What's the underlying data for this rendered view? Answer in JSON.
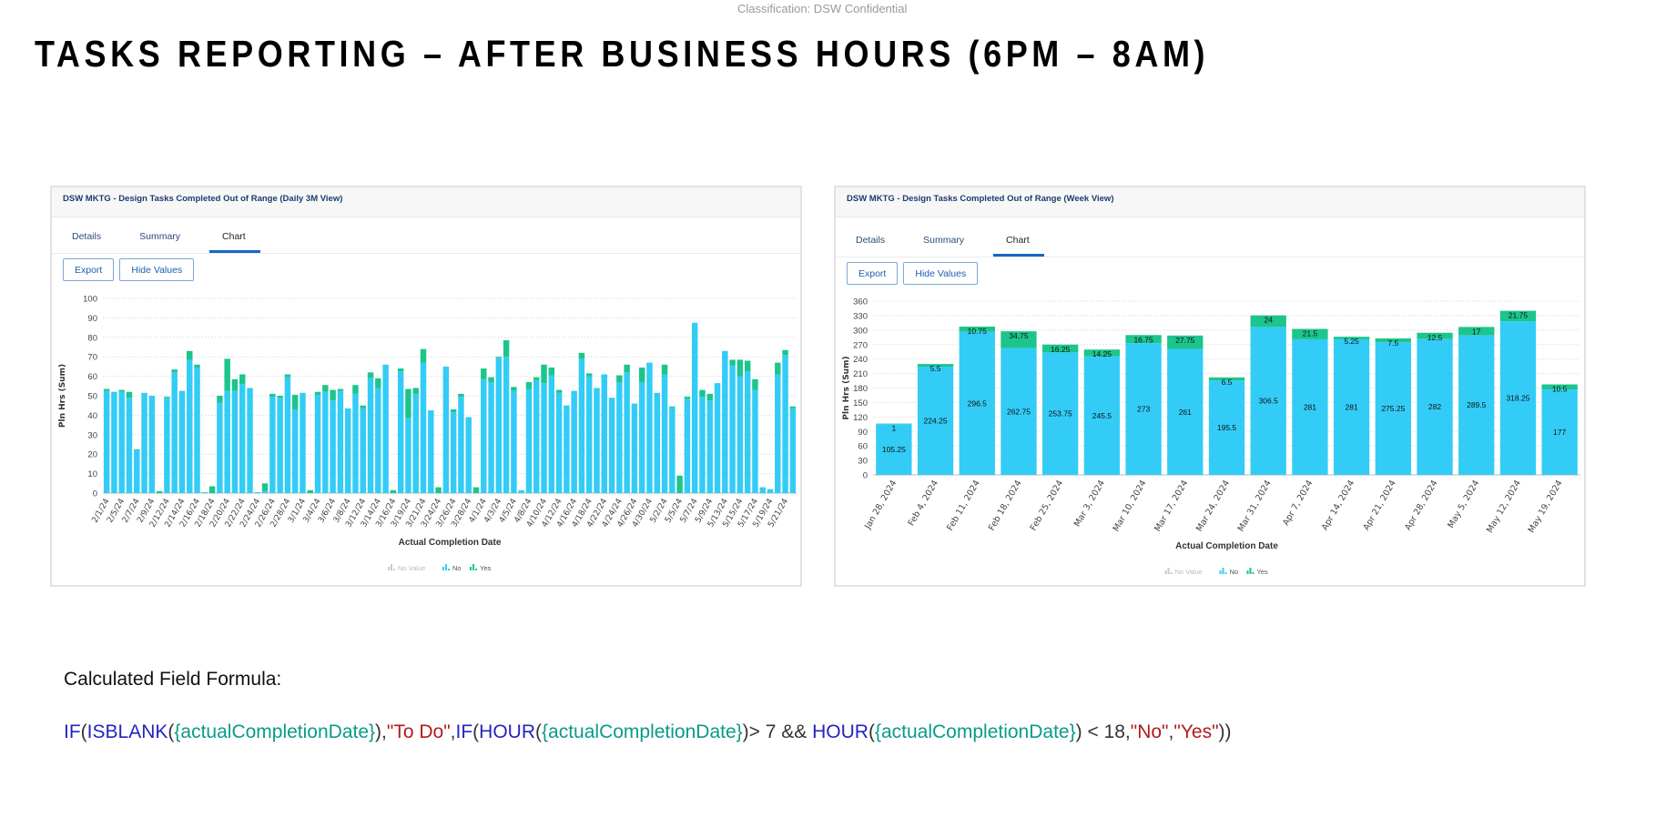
{
  "classification": "Classification: DSW Confidential",
  "title": "TASKS REPORTING – AFTER BUSINESS HOURS (6PM – 8AM)",
  "colors": {
    "no": "#33ccf6",
    "yes": "#1cc58c",
    "no_value": "#c9c9c9",
    "accent": "#1667c2"
  },
  "panels": [
    {
      "title": "DSW MKTG - Design Tasks Completed Out of Range (Daily 3M View)",
      "tabs": [
        "Details",
        "Summary",
        "Chart"
      ],
      "active_tab": "Chart",
      "buttons": {
        "export": "Export",
        "hide_values": "Hide Values"
      }
    },
    {
      "title": "DSW MKTG - Design Tasks Completed Out of Range (Week View)",
      "tabs": [
        "Details",
        "Summary",
        "Chart"
      ],
      "active_tab": "Chart",
      "buttons": {
        "export": "Export",
        "hide_values": "Hide Values"
      }
    }
  ],
  "chart_data": [
    {
      "type": "bar",
      "stacked": true,
      "title": "DSW MKTG - Design Tasks Completed Out of Range (Daily 3M View)",
      "xlabel": "Actual Completion Date",
      "ylabel": "Pln Hrs (Sum)",
      "ylim": [
        0,
        100
      ],
      "yticks": [
        0,
        10,
        20,
        30,
        40,
        50,
        60,
        70,
        80,
        90,
        100
      ],
      "grid": true,
      "legend": [
        "No Value",
        "No",
        "Yes"
      ],
      "legend_placement": "bottom",
      "tick_every": 2,
      "tick_labels": [
        "2/1/24",
        "2/5/24",
        "2/7/24",
        "2/9/24",
        "2/12/24",
        "2/14/24",
        "2/16/24",
        "2/18/24",
        "2/20/24",
        "2/22/24",
        "2/24/24",
        "2/26/24",
        "2/28/24",
        "3/1/24",
        "3/4/24",
        "3/6/24",
        "3/8/24",
        "3/12/24",
        "3/14/24",
        "3/16/24",
        "3/19/24",
        "3/21/24",
        "3/24/24",
        "3/26/24",
        "3/28/24",
        "4/1/24",
        "4/3/24",
        "4/5/24",
        "4/8/24",
        "4/10/24",
        "4/12/24",
        "4/16/24",
        "4/18/24",
        "4/22/24",
        "4/24/24",
        "4/26/24",
        "4/30/24",
        "5/2/24",
        "5/5/24",
        "5/7/24",
        "5/9/24",
        "5/13/24",
        "5/15/24",
        "5/17/24",
        "5/19/24",
        "5/21/24"
      ],
      "series": [
        {
          "name": "No",
          "values": [
            52.5,
            52,
            52,
            49,
            22,
            51.5,
            50,
            0,
            49,
            62,
            52.5,
            68.5,
            64.5,
            0.5,
            0,
            46.5,
            52.5,
            52.5,
            56,
            54,
            0.5,
            1,
            49.5,
            49,
            59.5,
            43,
            51.5,
            0,
            50.5,
            52,
            47.5,
            52.5,
            43.5,
            51,
            43.5,
            59,
            54,
            66,
            0,
            62.5,
            38.5,
            51,
            67,
            42.5,
            0,
            65,
            41.5,
            49.5,
            39,
            0,
            58.5,
            57,
            69.5,
            70,
            52.5,
            1.5,
            53.5,
            58,
            56.5,
            60.5,
            51.5,
            45,
            52.5,
            69,
            60,
            54,
            61,
            49,
            57,
            62,
            46,
            57,
            67,
            51.5,
            61,
            44,
            0,
            48.5,
            87.5,
            49.5,
            47.5,
            56.5,
            73,
            65.5,
            60,
            62.5,
            53,
            3,
            2,
            61,
            71,
            43.5
          ]
        },
        {
          "name": "Yes",
          "values": [
            1,
            0,
            1,
            3,
            0.5,
            0,
            0,
            1,
            0.5,
            1.5,
            0,
            4.5,
            1.5,
            0,
            3.5,
            3.5,
            16.5,
            6,
            5,
            0,
            0,
            4,
            1.5,
            1,
            1.5,
            7.5,
            0,
            1.5,
            1.5,
            3.5,
            5.5,
            1,
            0,
            4.5,
            1.5,
            3,
            5,
            0,
            1.5,
            1.5,
            15,
            3,
            7,
            0,
            3,
            0,
            1.5,
            1.5,
            0,
            3,
            5.5,
            2.5,
            0.5,
            8.5,
            2,
            0,
            3.5,
            1.5,
            9.5,
            4,
            1.5,
            0,
            0,
            3,
            1.5,
            0,
            0,
            0,
            3.5,
            4,
            0,
            7.5,
            0,
            0,
            5,
            0.5,
            9,
            1,
            0,
            3.5,
            3.5,
            0,
            0,
            3,
            8.5,
            5.5,
            5.5,
            0,
            0,
            6,
            2.5,
            1
          ]
        }
      ]
    },
    {
      "type": "bar",
      "stacked": true,
      "title": "DSW MKTG - Design Tasks Completed Out of Range (Week View)",
      "xlabel": "Actual Completion Date",
      "ylabel": "Pln Hrs (Sum)",
      "ylim": [
        0,
        360
      ],
      "yticks": [
        0,
        30,
        60,
        90,
        120,
        150,
        180,
        210,
        240,
        270,
        300,
        330,
        360
      ],
      "grid": true,
      "legend": [
        "No Value",
        "No",
        "Yes"
      ],
      "legend_placement": "bottom",
      "show_values": true,
      "tick_every": 1,
      "tick_labels": [
        "Jan 28, 2024",
        "Feb 4, 2024",
        "Feb 11, 2024",
        "Feb 18, 2024",
        "Feb 25, 2024",
        "Mar 3, 2024",
        "Mar 10, 2024",
        "Mar 17, 2024",
        "Mar 24, 2024",
        "Mar 31, 2024",
        "Apr 7, 2024",
        "Apr 14, 2024",
        "Apr 21, 2024",
        "Apr 28, 2024",
        "May 5, 2024",
        "May 12, 2024",
        "May 19, 2024"
      ],
      "series": [
        {
          "name": "No",
          "values": [
            105.25,
            224.25,
            296.5,
            262.75,
            253.75,
            245.5,
            273,
            261,
            195.5,
            306.5,
            281,
            281,
            275.25,
            282,
            289.5,
            318.25,
            177
          ]
        },
        {
          "name": "Yes",
          "values": [
            1,
            5.5,
            10.75,
            34.75,
            16.25,
            14.25,
            16.75,
            27.75,
            6.5,
            24,
            21.5,
            5.25,
            7.5,
            12.5,
            17,
            21.75,
            10.5
          ]
        }
      ]
    }
  ],
  "formula_label": "Calculated Field Formula:",
  "formula": [
    {
      "t": "IF",
      "c": "fn"
    },
    {
      "t": "(",
      "c": "p"
    },
    {
      "t": "ISBLANK",
      "c": "fn"
    },
    {
      "t": "(",
      "c": "p"
    },
    {
      "t": "{actualCompletionDate}",
      "c": "field"
    },
    {
      "t": "),",
      "c": "p"
    },
    {
      "t": "\"To Do\"",
      "c": "str"
    },
    {
      "t": ",",
      "c": "p"
    },
    {
      "t": "IF",
      "c": "fn"
    },
    {
      "t": "(",
      "c": "p"
    },
    {
      "t": "HOUR",
      "c": "fn"
    },
    {
      "t": "(",
      "c": "p"
    },
    {
      "t": "{actualCompletionDate}",
      "c": "field"
    },
    {
      "t": ")> 7 && ",
      "c": "p"
    },
    {
      "t": "HOUR",
      "c": "fn"
    },
    {
      "t": "(",
      "c": "p"
    },
    {
      "t": "{actualCompletionDate}",
      "c": "field"
    },
    {
      "t": ") < 18,",
      "c": "p"
    },
    {
      "t": "\"No\"",
      "c": "str"
    },
    {
      "t": ",",
      "c": "p"
    },
    {
      "t": "\"Yes\"",
      "c": "str"
    },
    {
      "t": "))",
      "c": "p"
    }
  ]
}
